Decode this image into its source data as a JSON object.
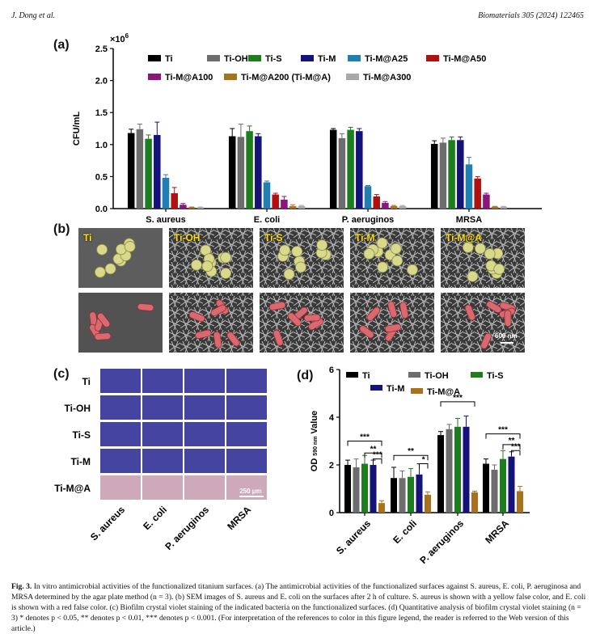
{
  "header": {
    "left": "J. Dong et al.",
    "right": "Biomaterials 305 (2024) 122465"
  },
  "panels": {
    "a": "(a)",
    "b": "(b)",
    "c": "(c)",
    "d": "(d)"
  },
  "colors": {
    "Ti": "#000000",
    "Ti-OH": "#6d6d6d",
    "Ti-S": "#1e7d1e",
    "Ti-M": "#15127a",
    "Ti-M@A25": "#1f7fb0",
    "Ti-M@A50": "#b01010",
    "Ti-M@A100": "#8b147d",
    "Ti-M@A200 (Ti-M@A)": "#a8711c",
    "Ti-M@A300": "#a8a8a8"
  },
  "chart_data": [
    {
      "panel": "a",
      "type": "bar",
      "ylabel": "CFU/mL",
      "yexponent": "×10",
      "yexponent_power": "6",
      "ylim": [
        0,
        2.5
      ],
      "yticks": [
        "0.0",
        "0.5",
        "1.0",
        "1.5",
        "2.0",
        "2.5"
      ],
      "categories": [
        "S. aureus",
        "E. coli",
        "P. aeruginos",
        "MRSA"
      ],
      "legend_placement": "top",
      "series": [
        {
          "name": "Ti",
          "values": [
            1.18,
            1.13,
            1.23,
            1.01
          ],
          "errors": [
            0.06,
            0.12,
            0.02,
            0.05
          ]
        },
        {
          "name": "Ti-OH",
          "values": [
            1.24,
            1.12,
            1.1,
            1.03
          ],
          "errors": [
            0.08,
            0.2,
            0.07,
            0.07
          ]
        },
        {
          "name": "Ti-S",
          "values": [
            1.09,
            1.21,
            1.23,
            1.07
          ],
          "errors": [
            0.06,
            0.08,
            0.04,
            0.05
          ]
        },
        {
          "name": "Ti-M",
          "values": [
            1.15,
            1.13,
            1.21,
            1.07
          ],
          "errors": [
            0.2,
            0.04,
            0.04,
            0.05
          ]
        },
        {
          "name": "Ti-M@A25",
          "values": [
            0.48,
            0.41,
            0.35,
            0.69
          ],
          "errors": [
            0.05,
            0.02,
            0.01,
            0.11
          ]
        },
        {
          "name": "Ti-M@A50",
          "values": [
            0.24,
            0.22,
            0.19,
            0.47
          ],
          "errors": [
            0.09,
            0.02,
            0.03,
            0.03
          ]
        },
        {
          "name": "Ti-M@A100",
          "values": [
            0.06,
            0.14,
            0.09,
            0.22
          ],
          "errors": [
            0.02,
            0.05,
            0.02,
            0.02
          ]
        },
        {
          "name": "Ti-M@A200 (Ti-M@A)",
          "values": [
            0.02,
            0.04,
            0.04,
            0.03
          ],
          "errors": [
            0.005,
            0.02,
            0.01,
            0.005
          ]
        },
        {
          "name": "Ti-M@A300",
          "values": [
            0.02,
            0.04,
            0.04,
            0.03
          ],
          "errors": [
            0.005,
            0.01,
            0.01,
            0.005
          ]
        }
      ]
    },
    {
      "panel": "d",
      "type": "bar",
      "ylabel_main": "OD",
      "ylabel_sub": "590 nm",
      "ylabel_tail": "Value",
      "ylim": [
        0,
        6
      ],
      "yticks": [
        "0",
        "2",
        "4",
        "6"
      ],
      "categories": [
        "S. aureus",
        "E. coli",
        "P. aeruginos",
        "MRSA"
      ],
      "legend_placement": "top",
      "series": [
        {
          "name": "Ti",
          "values": [
            2.0,
            1.45,
            3.25,
            2.05
          ],
          "errors": [
            0.2,
            0.45,
            0.15,
            0.2
          ]
        },
        {
          "name": "Ti-OH",
          "values": [
            1.9,
            1.45,
            3.5,
            1.8
          ],
          "errors": [
            0.35,
            0.3,
            0.2,
            0.2
          ]
        },
        {
          "name": "Ti-S",
          "values": [
            2.05,
            1.5,
            3.6,
            2.25
          ],
          "errors": [
            0.35,
            0.35,
            0.35,
            0.35
          ]
        },
        {
          "name": "Ti-M",
          "values": [
            2.0,
            1.6,
            3.6,
            2.35
          ],
          "errors": [
            0.2,
            0.45,
            0.45,
            0.2
          ]
        },
        {
          "name": "Ti-M@A",
          "values": [
            0.4,
            0.75,
            0.85,
            0.9
          ],
          "errors": [
            0.1,
            0.12,
            0.05,
            0.2
          ]
        }
      ],
      "significance": [
        "***",
        "**",
        "***",
        "**",
        "*",
        "***",
        "***",
        "**",
        "***"
      ]
    }
  ],
  "sem": {
    "labels": [
      "Ti",
      "Ti-OH",
      "Ti-S",
      "Ti-M",
      "Ti-M@A"
    ],
    "scalebar": "600 nm"
  },
  "staining": {
    "rows": [
      "Ti",
      "Ti-OH",
      "Ti-S",
      "Ti-M",
      "Ti-M@A"
    ],
    "columns": [
      "S. aureus",
      "E. coli",
      "P. aeruginos",
      "MRSA"
    ],
    "scalebar": "250 μm"
  },
  "caption": {
    "fig": "Fig. 3.",
    "text": "In vitro antimicrobial activities of the functionalized titanium surfaces. (a) The antimicrobial activities of the functionalized surfaces against S. aureus, E. coli, P. aeruginosa and MRSA determined by the agar plate method (n = 3). (b) SEM images of S. aureus and E. coli on the surfaces after 2 h of culture. S. aureus is shown with a yellow false color, and E. coli is shown with a red false color. (c) Biofilm crystal violet staining of the indicated bacteria on the functionalized surfaces. (d) Quantitative analysis of biofilm crystal violet staining (n = 3) * denotes p < 0.05, ** denotes p < 0.01, *** denotes p < 0.001. (For interpretation of the references to color in this figure legend, the reader is referred to the Web version of this article.)"
  }
}
